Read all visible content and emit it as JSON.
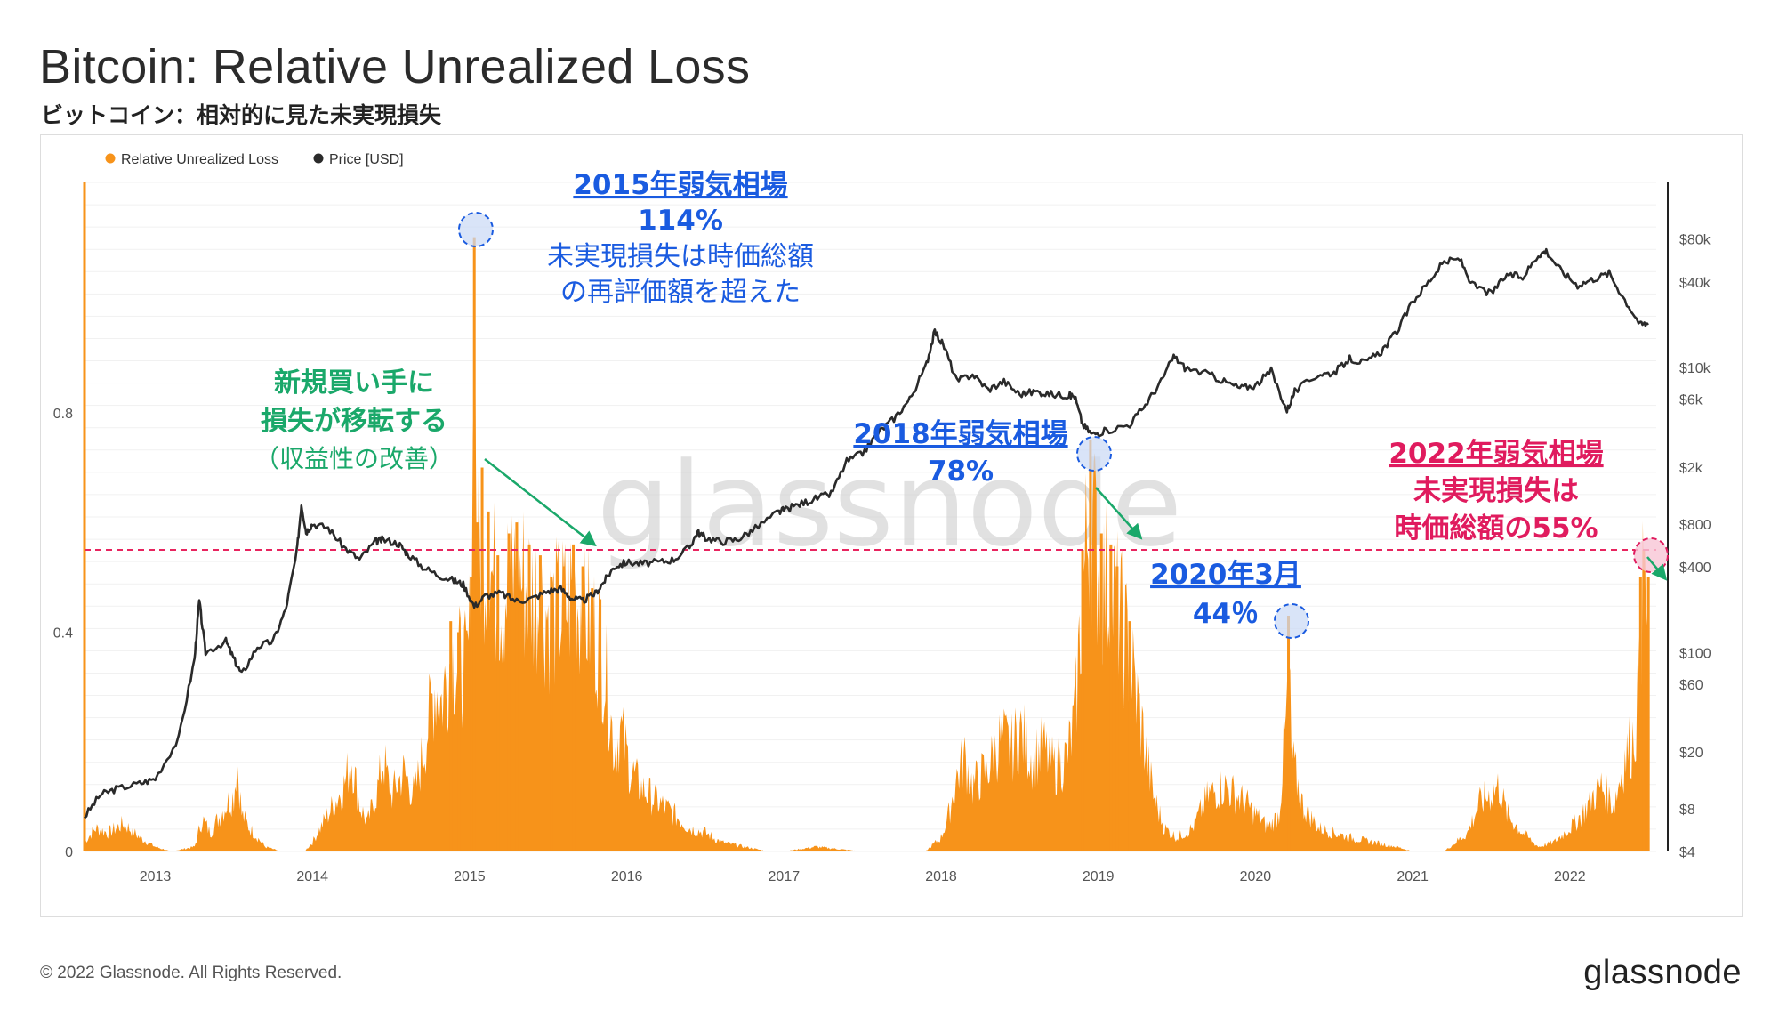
{
  "header": {
    "title": "Bitcoin: Relative Unrealized Loss",
    "subtitle": "ビットコイン：相対的に見た未実現損失"
  },
  "footer": {
    "copyright": "© 2022 Glassnode. All Rights Reserved.",
    "logo": "glassnode"
  },
  "watermark": "glassnode",
  "colors": {
    "loss": "#f7931a",
    "price": "#2a2a2a",
    "threshold": "#e8245f",
    "blue_annotation": "#1a5be0",
    "green_annotation": "#1aa86a",
    "pink_annotation": "#e01b5e"
  },
  "annotations": {
    "a2015": {
      "line1": "2015年弱気相場",
      "line2": "114%",
      "line3": "未実現損失は時価総額",
      "line4": "の再評価額を超えた"
    },
    "buyers": {
      "line1": "新規買い手に",
      "line2": "損失が移転する",
      "line3": "（収益性の改善）"
    },
    "a2018": {
      "line1": "2018年弱気相場",
      "line2": "78%"
    },
    "a2020": {
      "line1": "2020年3月",
      "line2": "44％"
    },
    "a2022": {
      "line1": "2022年弱気相場",
      "line2": "未実現損失は",
      "line3": "時価総額の55%"
    }
  },
  "chart_data": {
    "type": "area",
    "legend": {
      "position": "top-left",
      "entries": [
        "Relative Unrealized Loss",
        "Price [USD]"
      ]
    },
    "grid": true,
    "x_ticks": [
      "2013",
      "2014",
      "2015",
      "2016",
      "2017",
      "2018",
      "2019",
      "2020",
      "2021",
      "2022"
    ],
    "x_range": [
      2012.55,
      2022.55
    ],
    "y_left": {
      "ticks": [
        "0",
        "0.4",
        "0.8"
      ],
      "range": [
        0,
        1.22
      ]
    },
    "y_right": {
      "scale": "log",
      "ticks": [
        "$4",
        "$8",
        "$20",
        "$60",
        "$100",
        "$400",
        "$800",
        "$2k",
        "$6k",
        "$10k",
        "$40k",
        "$80k"
      ],
      "range": [
        4,
        200000
      ]
    },
    "threshold": 0.55,
    "series": [
      {
        "name": "Relative Unrealized Loss",
        "type": "area",
        "points": [
          [
            2012.55,
            0.02
          ],
          [
            2012.62,
            0.05
          ],
          [
            2012.7,
            0.04
          ],
          [
            2012.8,
            0.06
          ],
          [
            2012.9,
            0.03
          ],
          [
            2013.0,
            0.01
          ],
          [
            2013.1,
            0.0
          ],
          [
            2013.25,
            0.01
          ],
          [
            2013.3,
            0.07
          ],
          [
            2013.35,
            0.04
          ],
          [
            2013.45,
            0.1
          ],
          [
            2013.5,
            0.12
          ],
          [
            2013.52,
            0.2
          ],
          [
            2013.55,
            0.08
          ],
          [
            2013.6,
            0.05
          ],
          [
            2013.7,
            0.01
          ],
          [
            2013.8,
            0.0
          ],
          [
            2013.95,
            0.0
          ],
          [
            2014.0,
            0.02
          ],
          [
            2014.1,
            0.08
          ],
          [
            2014.2,
            0.14
          ],
          [
            2014.25,
            0.2
          ],
          [
            2014.3,
            0.1
          ],
          [
            2014.35,
            0.06
          ],
          [
            2014.42,
            0.14
          ],
          [
            2014.45,
            0.2
          ],
          [
            2014.5,
            0.12
          ],
          [
            2014.58,
            0.17
          ],
          [
            2014.65,
            0.12
          ],
          [
            2014.72,
            0.24
          ],
          [
            2014.78,
            0.36
          ],
          [
            2014.82,
            0.32
          ],
          [
            2014.88,
            0.42
          ],
          [
            2014.93,
            0.4
          ],
          [
            2014.98,
            0.38
          ],
          [
            2015.01,
            0.5
          ],
          [
            2015.03,
            1.12
          ],
          [
            2015.05,
            0.6
          ],
          [
            2015.08,
            0.7
          ],
          [
            2015.12,
            0.62
          ],
          [
            2015.18,
            0.54
          ],
          [
            2015.25,
            0.58
          ],
          [
            2015.3,
            0.6
          ],
          [
            2015.38,
            0.56
          ],
          [
            2015.45,
            0.54
          ],
          [
            2015.52,
            0.5
          ],
          [
            2015.6,
            0.52
          ],
          [
            2015.66,
            0.56
          ],
          [
            2015.72,
            0.52
          ],
          [
            2015.78,
            0.48
          ],
          [
            2015.83,
            0.46
          ],
          [
            2015.88,
            0.34
          ],
          [
            2015.92,
            0.22
          ],
          [
            2015.96,
            0.26
          ],
          [
            2016.02,
            0.18
          ],
          [
            2016.08,
            0.14
          ],
          [
            2016.15,
            0.12
          ],
          [
            2016.22,
            0.1
          ],
          [
            2016.3,
            0.08
          ],
          [
            2016.4,
            0.05
          ],
          [
            2016.5,
            0.04
          ],
          [
            2016.6,
            0.02
          ],
          [
            2016.75,
            0.01
          ],
          [
            2016.9,
            0.0
          ],
          [
            2017.0,
            0.0
          ],
          [
            2017.2,
            0.01
          ],
          [
            2017.5,
            0.0
          ],
          [
            2017.7,
            0.0
          ],
          [
            2017.9,
            0.0
          ],
          [
            2018.0,
            0.03
          ],
          [
            2018.05,
            0.08
          ],
          [
            2018.1,
            0.16
          ],
          [
            2018.15,
            0.2
          ],
          [
            2018.2,
            0.14
          ],
          [
            2018.3,
            0.18
          ],
          [
            2018.38,
            0.24
          ],
          [
            2018.45,
            0.22
          ],
          [
            2018.5,
            0.26
          ],
          [
            2018.58,
            0.2
          ],
          [
            2018.65,
            0.22
          ],
          [
            2018.72,
            0.18
          ],
          [
            2018.8,
            0.2
          ],
          [
            2018.85,
            0.28
          ],
          [
            2018.9,
            0.55
          ],
          [
            2018.95,
            0.75
          ],
          [
            2018.98,
            0.66
          ],
          [
            2019.02,
            0.58
          ],
          [
            2019.08,
            0.56
          ],
          [
            2019.12,
            0.52
          ],
          [
            2019.2,
            0.42
          ],
          [
            2019.28,
            0.26
          ],
          [
            2019.35,
            0.12
          ],
          [
            2019.42,
            0.05
          ],
          [
            2019.5,
            0.03
          ],
          [
            2019.6,
            0.05
          ],
          [
            2019.7,
            0.12
          ],
          [
            2019.8,
            0.14
          ],
          [
            2019.88,
            0.12
          ],
          [
            2019.95,
            0.1
          ],
          [
            2020.0,
            0.08
          ],
          [
            2020.08,
            0.05
          ],
          [
            2020.15,
            0.08
          ],
          [
            2020.2,
            0.3
          ],
          [
            2020.21,
            0.43
          ],
          [
            2020.23,
            0.2
          ],
          [
            2020.3,
            0.1
          ],
          [
            2020.4,
            0.05
          ],
          [
            2020.5,
            0.04
          ],
          [
            2020.6,
            0.03
          ],
          [
            2020.75,
            0.02
          ],
          [
            2020.9,
            0.01
          ],
          [
            2021.0,
            0.0
          ],
          [
            2021.2,
            0.0
          ],
          [
            2021.35,
            0.04
          ],
          [
            2021.42,
            0.1
          ],
          [
            2021.48,
            0.12
          ],
          [
            2021.55,
            0.14
          ],
          [
            2021.6,
            0.08
          ],
          [
            2021.7,
            0.04
          ],
          [
            2021.8,
            0.01
          ],
          [
            2021.9,
            0.02
          ],
          [
            2022.0,
            0.05
          ],
          [
            2022.08,
            0.08
          ],
          [
            2022.15,
            0.12
          ],
          [
            2022.2,
            0.14
          ],
          [
            2022.28,
            0.1
          ],
          [
            2022.35,
            0.2
          ],
          [
            2022.4,
            0.24
          ],
          [
            2022.43,
            0.3
          ],
          [
            2022.45,
            0.5
          ],
          [
            2022.47,
            0.55
          ],
          [
            2022.5,
            0.5
          ]
        ]
      },
      {
        "name": "Price [USD]",
        "type": "line",
        "points": [
          [
            2012.55,
            7
          ],
          [
            2012.65,
            10
          ],
          [
            2012.75,
            11
          ],
          [
            2012.9,
            12
          ],
          [
            2013.0,
            13
          ],
          [
            2013.15,
            25
          ],
          [
            2013.25,
            90
          ],
          [
            2013.28,
            230
          ],
          [
            2013.32,
            100
          ],
          [
            2013.45,
            120
          ],
          [
            2013.5,
            90
          ],
          [
            2013.55,
            70
          ],
          [
            2013.65,
            110
          ],
          [
            2013.75,
            120
          ],
          [
            2013.83,
            200
          ],
          [
            2013.9,
            500
          ],
          [
            2013.93,
            1100
          ],
          [
            2013.96,
            700
          ],
          [
            2014.0,
            800
          ],
          [
            2014.1,
            750
          ],
          [
            2014.2,
            550
          ],
          [
            2014.3,
            450
          ],
          [
            2014.4,
            600
          ],
          [
            2014.45,
            620
          ],
          [
            2014.55,
            580
          ],
          [
            2014.6,
            500
          ],
          [
            2014.7,
            400
          ],
          [
            2014.8,
            350
          ],
          [
            2014.9,
            320
          ],
          [
            2014.96,
            300
          ],
          [
            2015.03,
            210
          ],
          [
            2015.1,
            250
          ],
          [
            2015.2,
            260
          ],
          [
            2015.3,
            230
          ],
          [
            2015.4,
            240
          ],
          [
            2015.5,
            270
          ],
          [
            2015.58,
            280
          ],
          [
            2015.65,
            240
          ],
          [
            2015.72,
            230
          ],
          [
            2015.8,
            260
          ],
          [
            2015.86,
            320
          ],
          [
            2015.92,
            400
          ],
          [
            2016.0,
            430
          ],
          [
            2016.1,
            420
          ],
          [
            2016.2,
            430
          ],
          [
            2016.3,
            450
          ],
          [
            2016.4,
            550
          ],
          [
            2016.45,
            700
          ],
          [
            2016.5,
            640
          ],
          [
            2016.6,
            600
          ],
          [
            2016.7,
            620
          ],
          [
            2016.8,
            720
          ],
          [
            2016.95,
            950
          ],
          [
            2017.0,
            1000
          ],
          [
            2017.1,
            1100
          ],
          [
            2017.2,
            1200
          ],
          [
            2017.3,
            1300
          ],
          [
            2017.4,
            2200
          ],
          [
            2017.5,
            2500
          ],
          [
            2017.6,
            3500
          ],
          [
            2017.7,
            4400
          ],
          [
            2017.8,
            6000
          ],
          [
            2017.9,
            10000
          ],
          [
            2017.96,
            18000
          ],
          [
            2018.02,
            14000
          ],
          [
            2018.1,
            8000
          ],
          [
            2018.2,
            9000
          ],
          [
            2018.3,
            7000
          ],
          [
            2018.4,
            8000
          ],
          [
            2018.5,
            6500
          ],
          [
            2018.6,
            6800
          ],
          [
            2018.7,
            6500
          ],
          [
            2018.8,
            6400
          ],
          [
            2018.85,
            6300
          ],
          [
            2018.9,
            4000
          ],
          [
            2018.96,
            3400
          ],
          [
            2019.05,
            3600
          ],
          [
            2019.2,
            4000
          ],
          [
            2019.3,
            5500
          ],
          [
            2019.4,
            8000
          ],
          [
            2019.48,
            12000
          ],
          [
            2019.55,
            10000
          ],
          [
            2019.7,
            9000
          ],
          [
            2019.8,
            8000
          ],
          [
            2019.9,
            7200
          ],
          [
            2020.0,
            7500
          ],
          [
            2020.1,
            9500
          ],
          [
            2020.2,
            5000
          ],
          [
            2020.25,
            6800
          ],
          [
            2020.4,
            9000
          ],
          [
            2020.5,
            9200
          ],
          [
            2020.6,
            11500
          ],
          [
            2020.7,
            10800
          ],
          [
            2020.8,
            13000
          ],
          [
            2020.9,
            18000
          ],
          [
            2021.0,
            29000
          ],
          [
            2021.1,
            40000
          ],
          [
            2021.2,
            55000
          ],
          [
            2021.3,
            58000
          ],
          [
            2021.38,
            38000
          ],
          [
            2021.5,
            33000
          ],
          [
            2021.6,
            45000
          ],
          [
            2021.7,
            43000
          ],
          [
            2021.8,
            62000
          ],
          [
            2021.85,
            66000
          ],
          [
            2021.95,
            47000
          ],
          [
            2022.05,
            38000
          ],
          [
            2022.15,
            42000
          ],
          [
            2022.25,
            46000
          ],
          [
            2022.35,
            30000
          ],
          [
            2022.45,
            20000
          ],
          [
            2022.5,
            20500
          ]
        ]
      }
    ]
  }
}
